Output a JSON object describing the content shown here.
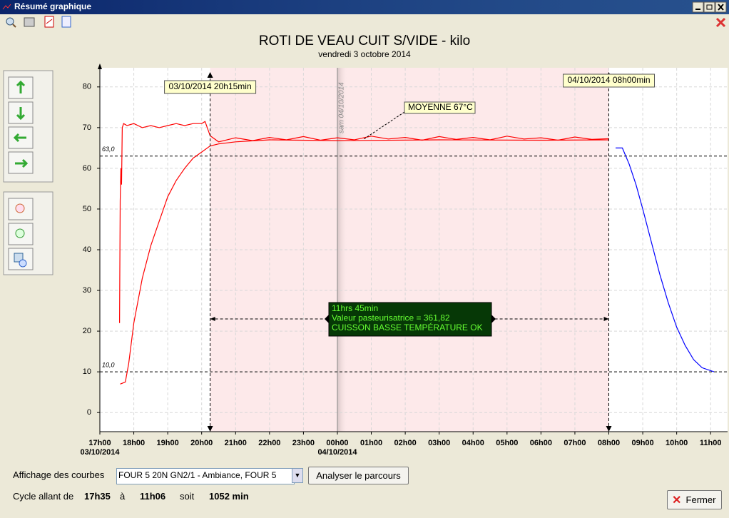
{
  "window": {
    "title": "Résumé graphique"
  },
  "chart_data": {
    "type": "line",
    "title": "ROTI DE VEAU CUIT S/VIDE - kilo",
    "subtitle": "vendredi 3 octobre 2014",
    "xlim": [
      0,
      18.5
    ],
    "ylim": [
      -4.7,
      84.7
    ],
    "xticks": [
      {
        "value": 0,
        "label": "17h00"
      },
      {
        "value": 1,
        "label": "18h00"
      },
      {
        "value": 2,
        "label": "19h00"
      },
      {
        "value": 3,
        "label": "20h00"
      },
      {
        "value": 4,
        "label": "21h00"
      },
      {
        "value": 5,
        "label": "22h00"
      },
      {
        "value": 6,
        "label": "23h00"
      },
      {
        "value": 7,
        "label": "00h00"
      },
      {
        "value": 8,
        "label": "01h00"
      },
      {
        "value": 9,
        "label": "02h00"
      },
      {
        "value": 10,
        "label": "03h00"
      },
      {
        "value": 11,
        "label": "04h00"
      },
      {
        "value": 12,
        "label": "05h00"
      },
      {
        "value": 13,
        "label": "06h00"
      },
      {
        "value": 14,
        "label": "07h00"
      },
      {
        "value": 15,
        "label": "08h00"
      },
      {
        "value": 16,
        "label": "09h00"
      },
      {
        "value": 17,
        "label": "10h00"
      },
      {
        "value": 18,
        "label": "11h00"
      }
    ],
    "x_date_labels": [
      {
        "value": 0,
        "label": "03/10/2014"
      },
      {
        "value": 7,
        "label": "04/10/2014"
      }
    ],
    "yticks": [
      0,
      10,
      20,
      30,
      40,
      50,
      60,
      70,
      80
    ],
    "grid": true,
    "reference_lines": [
      {
        "value": 63,
        "label": "63,0"
      },
      {
        "value": 10,
        "label": "10,0"
      }
    ],
    "markers": [
      {
        "x": 3.25,
        "label": "03/10/2014 20h15min"
      },
      {
        "x": 15,
        "label": "04/10/2014 08h00min"
      }
    ],
    "day_line": {
      "x": 7,
      "label": "sam 04/10/2014"
    },
    "annotation": "MOYENNE 67°C",
    "summary_box": [
      "11hrs 45min",
      "Valeur pasteurisatrice = 361,82",
      "CUISSON BASSE TEMPÉRATURE OK"
    ],
    "series": [
      {
        "color": "#ff0000",
        "x": [
          0.58,
          0.6,
          0.62,
          0.64,
          0.66,
          0.7,
          0.8,
          1.0,
          1.25,
          1.5,
          1.75,
          2.0,
          2.25,
          2.5,
          2.75,
          3.0,
          3.1,
          3.25,
          3.5,
          4.0,
          4.5,
          5.0,
          5.5,
          6.0,
          6.5,
          7.0,
          7.5,
          8.0,
          8.5,
          9.0,
          9.5,
          10.0,
          10.5,
          11.0,
          11.5,
          12.0,
          12.5,
          13.0,
          13.5,
          14.0,
          14.5,
          15.0
        ],
        "values": [
          22,
          52,
          60,
          56,
          70,
          71,
          70.5,
          71,
          70,
          70.5,
          70,
          70.5,
          71,
          70.5,
          71,
          71,
          71.5,
          68,
          66.5,
          67.5,
          66.8,
          67.6,
          67,
          67.8,
          66.9,
          67.5,
          67,
          67.9,
          67.2,
          67.6,
          66.9,
          67.8,
          67.1,
          67.6,
          67,
          67.9,
          67.2,
          67.5,
          66.9,
          67.7,
          67.1,
          67.3
        ]
      },
      {
        "color": "#ff0000",
        "x": [
          0.6,
          0.75,
          0.85,
          1.0,
          1.25,
          1.5,
          1.75,
          2.0,
          2.25,
          2.5,
          2.75,
          3.0,
          3.25,
          3.5,
          4.0,
          5.0,
          7.0,
          10.0,
          13.0,
          15.0
        ],
        "values": [
          7,
          7.5,
          12,
          22,
          33,
          41,
          47,
          53,
          57,
          60,
          62.5,
          64,
          65.5,
          66,
          66.5,
          67,
          66.8,
          67,
          66.9,
          67
        ]
      },
      {
        "color": "#0000ff",
        "x": [
          15.2,
          15.4,
          15.6,
          15.8,
          16.0,
          16.25,
          16.5,
          16.75,
          17.0,
          17.25,
          17.5,
          17.75,
          18.1
        ],
        "values": [
          65,
          65,
          61,
          56,
          50,
          42,
          34,
          27,
          21,
          16.5,
          13,
          11,
          10
        ]
      }
    ]
  },
  "controls": {
    "display_label": "Affichage des courbes",
    "select_value": "FOUR 5 20N GN2/1 - Ambiance, FOUR 5",
    "analyze_button": "Analyser le parcours",
    "cycle_label": "Cycle allant de",
    "start": "17h35",
    "at_word": "à",
    "end": "11h06",
    "for_word": "soit",
    "duration": "1052 min",
    "close_button": "Fermer"
  }
}
